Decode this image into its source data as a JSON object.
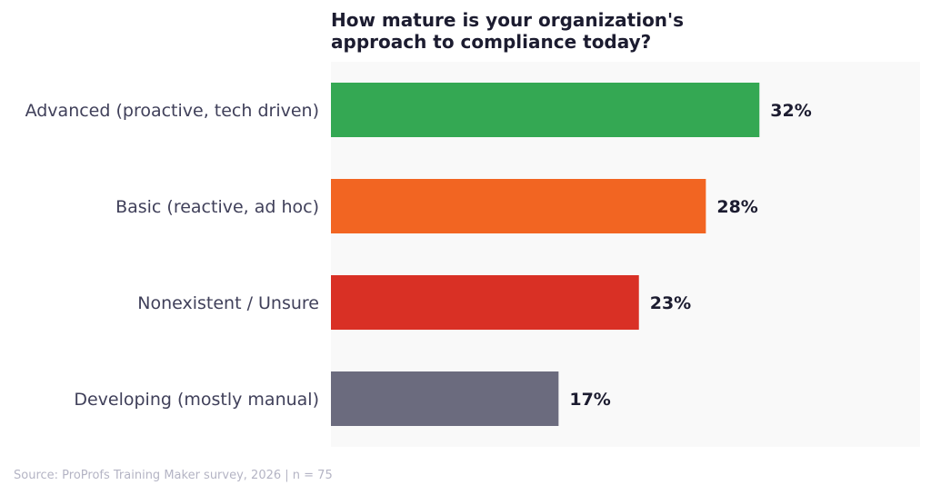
{
  "chart_data": {
    "type": "bar",
    "orientation": "horizontal",
    "title": "How mature is your organization's\napproach to compliance today?",
    "categories": [
      "Advanced (proactive, tech driven)",
      "Basic (reactive, ad hoc)",
      "Nonexistent / Unsure",
      "Developing (mostly manual)"
    ],
    "values": [
      32,
      28,
      23,
      17
    ],
    "data_labels": [
      "32%",
      "28%",
      "23%",
      "17%"
    ],
    "colors": [
      "#34a853",
      "#f26522",
      "#d93025",
      "#6b6b7e"
    ],
    "xlim": [
      0,
      44
    ],
    "grid": false,
    "plot_background": "#f9f9f9",
    "xlabel": "",
    "ylabel": ""
  },
  "footer": "Source: ProProfs Training Maker survey, 2026  |  n = 75"
}
